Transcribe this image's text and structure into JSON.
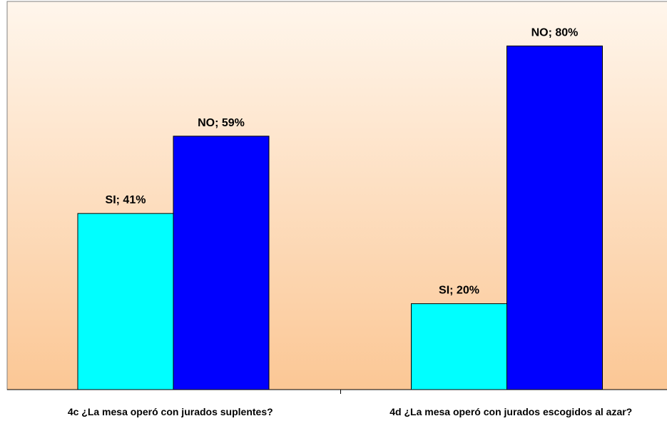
{
  "chart_data": {
    "type": "bar",
    "categories": [
      "4c ¿La mesa operó con jurados suplentes?",
      "4d ¿La mesa operó con jurados escogidos al azar?"
    ],
    "series": [
      {
        "key": "SI",
        "values": [
          41,
          20
        ],
        "labels": [
          "SI; 41%",
          "SI; 20%"
        ],
        "color": "#00FFFF"
      },
      {
        "key": "NO",
        "values": [
          59,
          80
        ],
        "labels": [
          "NO; 59%",
          "NO; 80%"
        ],
        "color": "#0000FF"
      }
    ],
    "unit": "%",
    "ylim": [
      0,
      100
    ],
    "grid": false,
    "legend": "none",
    "background_gradient": [
      "#FFF6EC",
      "#FBC795"
    ]
  }
}
